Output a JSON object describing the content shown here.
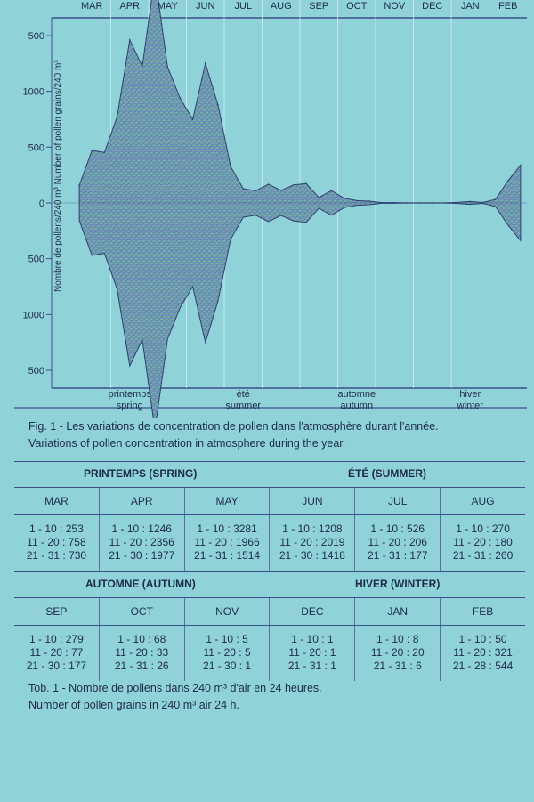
{
  "chart_data": {
    "type": "area",
    "months": [
      "MAR",
      "APR",
      "MAY",
      "JUN",
      "JUL",
      "AUG",
      "SEP",
      "OCT",
      "NOV",
      "DEC",
      "JAN",
      "FEB"
    ],
    "y_ticks": [
      "500",
      "1000",
      "500",
      "0",
      "500",
      "1000",
      "500"
    ],
    "y_ticks_note": "mirrored axis: labels show 1500 truncated as '500' at top and bottom",
    "ylabel": "Nombre de pollens/240 m³  Number of pollen grains/240 m³",
    "seasons": [
      {
        "fr": "printemps",
        "en": "spring"
      },
      {
        "fr": "été",
        "en": "summer"
      },
      {
        "fr": "automne",
        "en": "autumn"
      },
      {
        "fr": "hiver",
        "en": "winter"
      }
    ],
    "series": [
      {
        "points": [
          [
            "MAR 1-10",
            253
          ],
          [
            "MAR 11-20",
            758
          ],
          [
            "MAR 21-31",
            730
          ],
          [
            "APR 1-10",
            1246
          ],
          [
            "APR 11-20",
            2356
          ],
          [
            "APR 21-30",
            1977
          ],
          [
            "MAY 1-10",
            3281
          ],
          [
            "MAY 11-20",
            1966
          ],
          [
            "MAY 21-31",
            1514
          ],
          [
            "JUN 1-10",
            1208
          ],
          [
            "JUN 11-20",
            2019
          ],
          [
            "JUN 21-30",
            1418
          ],
          [
            "JUL 1-10",
            526
          ],
          [
            "JUL 11-20",
            206
          ],
          [
            "JUL 21-31",
            177
          ],
          [
            "AUG 1-10",
            270
          ],
          [
            "AUG 11-20",
            180
          ],
          [
            "AUG 21-31",
            260
          ],
          [
            "SEP 1-10",
            279
          ],
          [
            "SEP 11-20",
            77
          ],
          [
            "SEP 21-30",
            177
          ],
          [
            "OCT 1-10",
            68
          ],
          [
            "OCT 11-20",
            33
          ],
          [
            "OCT 21-31",
            26
          ],
          [
            "NOV 1-10",
            5
          ],
          [
            "NOV 11-20",
            5
          ],
          [
            "NOV 21-30",
            1
          ],
          [
            "DEC 1-10",
            1
          ],
          [
            "DEC 11-20",
            1
          ],
          [
            "DEC 21-31",
            1
          ],
          [
            "JAN 1-10",
            8
          ],
          [
            "JAN 11-20",
            20
          ],
          [
            "JAN 21-31",
            6
          ],
          [
            "FEB 1-10",
            50
          ],
          [
            "FEB 11-20",
            321
          ],
          [
            "FEB 21-28",
            544
          ]
        ]
      }
    ]
  },
  "fig_caption": {
    "fr": "Fig. 1 - Les variations de concentration de pollen dans l'atmosphère durant l'année.",
    "en": "Variations of pollen concentration in atmosphere during the year."
  },
  "table1": {
    "season_left": "PRINTEMPS (SPRING)",
    "season_right": "ÉTÉ (SUMMER)",
    "months": [
      "MAR",
      "APR",
      "MAY",
      "JUN",
      "JUL",
      "AUG"
    ],
    "cells": [
      [
        "1 - 10 : 253",
        "11 - 20 : 758",
        "21 - 31 : 730"
      ],
      [
        "1 - 10 : 1246",
        "11 - 20 : 2356",
        "21 - 30 : 1977"
      ],
      [
        "1 - 10 : 3281",
        "11 - 20 : 1966",
        "21 - 31 : 1514"
      ],
      [
        "1 - 10 : 1208",
        "11 - 20 : 2019",
        "21 - 30 : 1418"
      ],
      [
        "1 - 10 : 526",
        "11 - 20 : 206",
        "21 - 31 : 177"
      ],
      [
        "1 - 10 : 270",
        "11 - 20 : 180",
        "21 - 31 : 260"
      ]
    ]
  },
  "table2": {
    "season_left": "AUTOMNE (AUTUMN)",
    "season_right": "HIVER (WINTER)",
    "months": [
      "SEP",
      "OCT",
      "NOV",
      "DEC",
      "JAN",
      "FEB"
    ],
    "cells": [
      [
        "1 - 10 : 279",
        "11 - 20 : 77",
        "21 - 30 : 177"
      ],
      [
        "1 - 10 : 68",
        "11 - 20 : 33",
        "21 - 31 : 26"
      ],
      [
        "1 - 10 : 5",
        "11 - 20 : 5",
        "21 - 30 : 1"
      ],
      [
        "1 - 10 : 1",
        "11 - 20 : 1",
        "21 - 31 : 1"
      ],
      [
        "1 - 10 : 8",
        "11 - 20 : 20",
        "21 - 31 : 6"
      ],
      [
        "1 - 10 : 50",
        "11 - 20 : 321",
        "21 - 28 : 544"
      ]
    ]
  },
  "tab_caption": {
    "fr": "Tob. 1 - Nombre de pollens dans 240 m³ d'air en 24 heures.",
    "en": "Number of pollen grains in 240 m³ air 24 h."
  },
  "colors": {
    "background": "#8fd3d8",
    "ink": "#1e2a4a",
    "rule": "#3c4f8a",
    "fill_a": "#5f8fc0",
    "fill_b": "#6fc09a"
  }
}
